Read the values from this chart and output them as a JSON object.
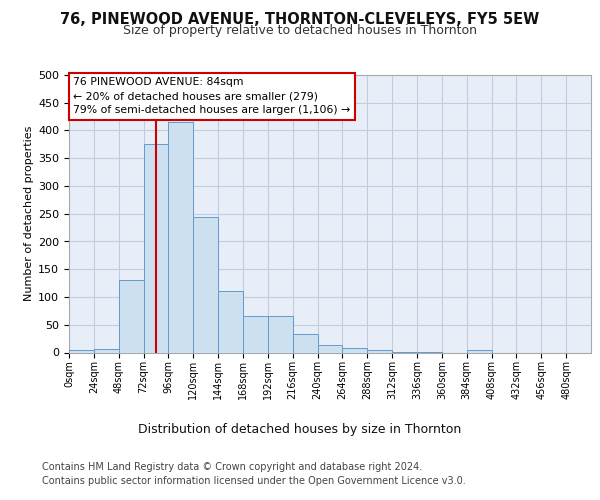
{
  "title": "76, PINEWOOD AVENUE, THORNTON-CLEVELEYS, FY5 5EW",
  "subtitle": "Size of property relative to detached houses in Thornton",
  "xlabel": "Distribution of detached houses by size in Thornton",
  "ylabel": "Number of detached properties",
  "bin_edges": [
    0,
    24,
    48,
    72,
    96,
    120,
    144,
    168,
    192,
    216,
    240,
    264,
    288,
    312,
    336,
    360,
    384,
    408,
    432,
    456,
    480
  ],
  "bar_values": [
    4,
    6,
    130,
    375,
    415,
    245,
    111,
    65,
    65,
    34,
    14,
    8,
    5,
    1,
    1,
    0,
    4,
    0,
    0,
    0
  ],
  "bar_color": "#cce0f0",
  "bar_edge_color": "#6699cc",
  "property_size": 84,
  "property_line_color": "#cc0000",
  "annotation_line1": "76 PINEWOOD AVENUE: 84sqm",
  "annotation_line2": "← 20% of detached houses are smaller (279)",
  "annotation_line3": "79% of semi-detached houses are larger (1,106) →",
  "annotation_box_facecolor": "#ffffff",
  "annotation_box_edgecolor": "#cc0000",
  "ylim": [
    0,
    500
  ],
  "yticks": [
    0,
    50,
    100,
    150,
    200,
    250,
    300,
    350,
    400,
    450,
    500
  ],
  "tick_labels": [
    "0sqm",
    "24sqm",
    "48sqm",
    "72sqm",
    "96sqm",
    "120sqm",
    "144sqm",
    "168sqm",
    "192sqm",
    "216sqm",
    "240sqm",
    "264sqm",
    "288sqm",
    "312sqm",
    "336sqm",
    "360sqm",
    "384sqm",
    "408sqm",
    "432sqm",
    "456sqm",
    "480sqm"
  ],
  "footer_line1": "Contains HM Land Registry data © Crown copyright and database right 2024.",
  "footer_line2": "Contains public sector information licensed under the Open Government Licence v3.0.",
  "plot_bg_color": "#e8eef8",
  "grid_color": "#c0cce0",
  "title_fontsize": 10.5,
  "subtitle_fontsize": 9
}
